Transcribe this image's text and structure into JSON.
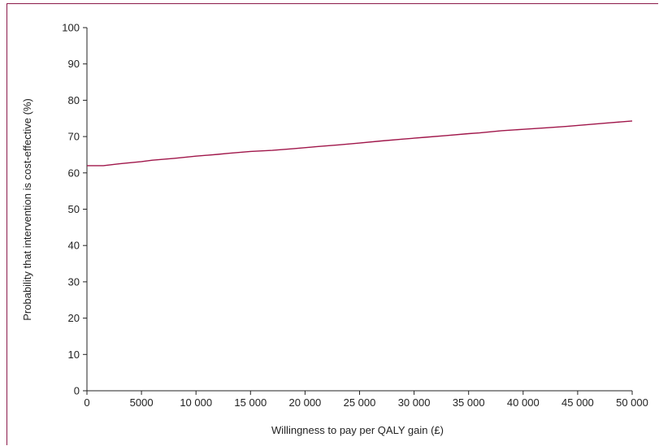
{
  "chart_data": {
    "type": "line",
    "title": "",
    "xlabel": "Willingness to pay per QALY gain (£)",
    "ylabel": "Probability that intervention is cost-effective (%)",
    "xlim": [
      0,
      50000
    ],
    "ylim": [
      0,
      100
    ],
    "x_ticks": [
      0,
      5000,
      10000,
      15000,
      20000,
      25000,
      30000,
      35000,
      40000,
      45000,
      50000
    ],
    "x_tick_labels": [
      "0",
      "5000",
      "10 000",
      "15 000",
      "20 000",
      "25 000",
      "30 000",
      "35 000",
      "40 000",
      "45 000",
      "50 000"
    ],
    "y_ticks": [
      0,
      10,
      20,
      30,
      40,
      50,
      60,
      70,
      80,
      90,
      100
    ],
    "y_tick_labels": [
      "0",
      "10",
      "20",
      "30",
      "40",
      "50",
      "60",
      "70",
      "80",
      "90",
      "100"
    ],
    "grid": false,
    "line_color": "#a0164a",
    "series": [
      {
        "x": [
          0,
          1000,
          1500,
          3000,
          5000,
          6000,
          8000,
          10000,
          12000,
          13000,
          15000,
          17000,
          19000,
          21000,
          23000,
          25000,
          27000,
          29000,
          31000,
          33000,
          35000,
          36000,
          38000,
          40000,
          42000,
          44000,
          46000,
          48000,
          50000
        ],
        "values": [
          62.0,
          62.0,
          62.0,
          62.5,
          63.1,
          63.5,
          64.0,
          64.6,
          65.1,
          65.4,
          65.9,
          66.2,
          66.7,
          67.2,
          67.7,
          68.2,
          68.8,
          69.3,
          69.8,
          70.3,
          70.8,
          71.0,
          71.6,
          72.0,
          72.4,
          72.8,
          73.3,
          73.8,
          74.3
        ]
      }
    ]
  }
}
